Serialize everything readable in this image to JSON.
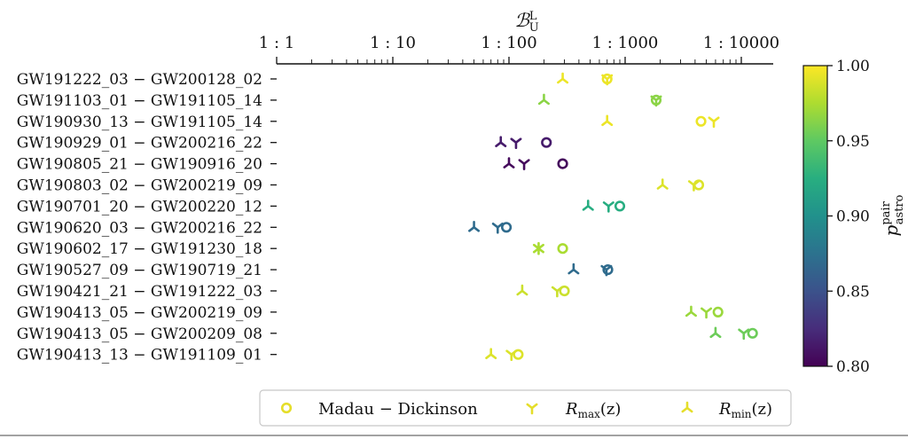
{
  "chart_data": {
    "type": "scatter",
    "title": "",
    "xlabel_main": "ℬ",
    "xlabel_sup": "L",
    "xlabel_sub": "U",
    "x_scale": "log",
    "x_tick_values": [
      1,
      10,
      100,
      1000,
      10000
    ],
    "x_tick_labels": [
      "1 : 1",
      "1 : 10",
      "1 : 100",
      "1 : 1000",
      "1 : 10000"
    ],
    "colorbar": {
      "label_main": "p",
      "label_sup": "pair",
      "label_sub": "astro",
      "range": [
        0.8,
        1.0
      ],
      "ticks": [
        0.8,
        0.85,
        0.9,
        0.95,
        1.0
      ],
      "tick_labels": [
        "0.80",
        "0.85",
        "0.90",
        "0.95",
        "1.00"
      ]
    },
    "series_labels": {
      "md_label": "Madau − Dickinson",
      "rmax_main": "R",
      "rmax_sub": "max",
      "rmax_arg": "(z)",
      "rmin_main": "R",
      "rmin_sub": "min",
      "rmin_arg": "(z)"
    },
    "rows": [
      {
        "label": "GW191222_03 − GW200128_02",
        "rmin": 290,
        "rmax": 700,
        "md": 700,
        "p": 0.995
      },
      {
        "label": "GW191103_01 − GW191105_14",
        "rmin": 200,
        "rmax": 1850,
        "md": 1850,
        "p": 0.965
      },
      {
        "label": "GW190930_13 − GW191105_14",
        "rmin": 700,
        "rmax": 5800,
        "md": 4500,
        "p": 0.995
      },
      {
        "label": "GW190929_01 − GW200216_22",
        "rmin": 85,
        "rmax": 115,
        "md": 210,
        "p": 0.815
      },
      {
        "label": "GW190805_21 − GW190916_20",
        "rmin": 100,
        "rmax": 135,
        "md": 290,
        "p": 0.805
      },
      {
        "label": "GW190803_02 − GW200219_09",
        "rmin": 2100,
        "rmax": 3900,
        "md": 4300,
        "p": 0.99
      },
      {
        "label": "GW190701_20 − GW200220_12",
        "rmin": 480,
        "rmax": 720,
        "md": 900,
        "p": 0.925
      },
      {
        "label": "GW190620_03 − GW200216_22",
        "rmin": 50,
        "rmax": 80,
        "md": 95,
        "p": 0.87
      },
      {
        "label": "GW190602_17 − GW191230_18",
        "rmin": 180,
        "rmax": 180,
        "md": 290,
        "p": 0.975
      },
      {
        "label": "GW190527_09 − GW190719_21",
        "rmin": 360,
        "rmax": 690,
        "md": 710,
        "p": 0.87
      },
      {
        "label": "GW190421_21 − GW191222_03",
        "rmin": 130,
        "rmax": 260,
        "md": 300,
        "p": 0.985
      },
      {
        "label": "GW190413_05 − GW200219_09",
        "rmin": 3700,
        "rmax": 5000,
        "md": 6300,
        "p": 0.97
      },
      {
        "label": "GW190413_05 − GW200209_08",
        "rmin": 6000,
        "rmax": 10500,
        "md": 12500,
        "p": 0.955
      },
      {
        "label": "GW190413_13 − GW191109_01",
        "rmin": 70,
        "rmax": 105,
        "md": 120,
        "p": 0.99
      }
    ]
  }
}
